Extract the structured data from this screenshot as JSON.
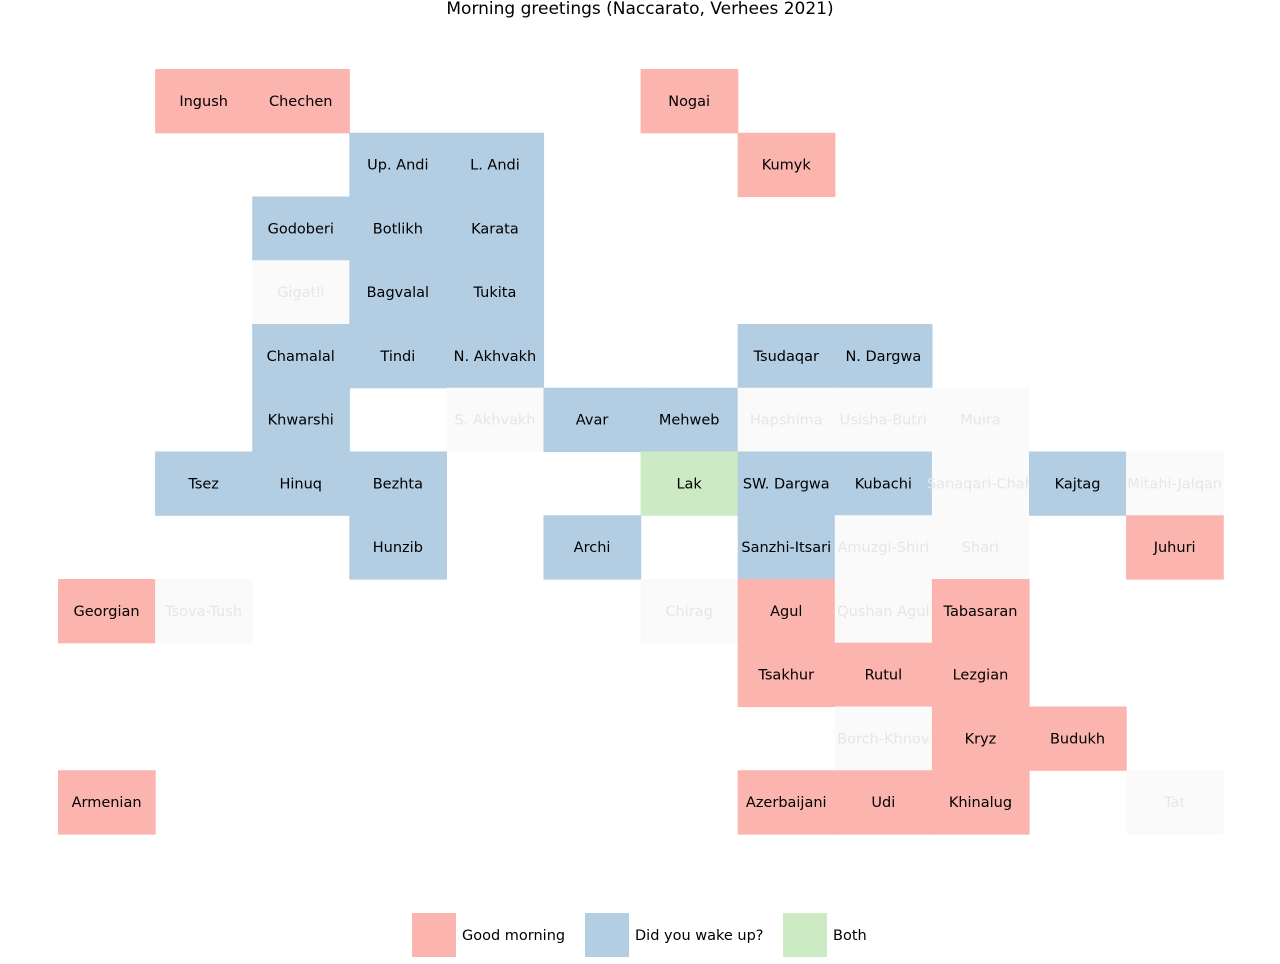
{
  "chart_data": {
    "type": "heatmap",
    "title": "Morning greetings (Naccarato, Verhees 2021)",
    "colors": {
      "good_morning": "#fbb4ae",
      "did_you_wake_up": "#b3cde3",
      "both": "#ccebc5",
      "no_data": "#fafafa",
      "label_dark": "#000000",
      "label_faded": "#e6e6e6"
    },
    "legend": {
      "placement": "bottom-center",
      "entries": [
        {
          "key": "good_morning",
          "label": "Good morning"
        },
        {
          "key": "did_you_wake_up",
          "label": "Did you wake up?"
        },
        {
          "key": "both",
          "label": "Both"
        }
      ]
    },
    "grid": {
      "columns": 12,
      "rows": 12
    },
    "cells": [
      {
        "name": "Ingush",
        "col": 1,
        "row": 0,
        "category": "good_morning"
      },
      {
        "name": "Chechen",
        "col": 2,
        "row": 0,
        "category": "good_morning"
      },
      {
        "name": "Nogai",
        "col": 6,
        "row": 0,
        "category": "good_morning"
      },
      {
        "name": "Up. Andi",
        "col": 3,
        "row": 1,
        "category": "did_you_wake_up"
      },
      {
        "name": "L. Andi",
        "col": 4,
        "row": 1,
        "category": "did_you_wake_up"
      },
      {
        "name": "Kumyk",
        "col": 7,
        "row": 1,
        "category": "good_morning"
      },
      {
        "name": "Godoberi",
        "col": 2,
        "row": 2,
        "category": "did_you_wake_up"
      },
      {
        "name": "Botlikh",
        "col": 3,
        "row": 2,
        "category": "did_you_wake_up"
      },
      {
        "name": "Karata",
        "col": 4,
        "row": 2,
        "category": "did_you_wake_up"
      },
      {
        "name": "Gigatli",
        "col": 2,
        "row": 3,
        "category": "no_data"
      },
      {
        "name": "Bagvalal",
        "col": 3,
        "row": 3,
        "category": "did_you_wake_up"
      },
      {
        "name": "Tukita",
        "col": 4,
        "row": 3,
        "category": "did_you_wake_up"
      },
      {
        "name": "Chamalal",
        "col": 2,
        "row": 4,
        "category": "did_you_wake_up"
      },
      {
        "name": "Tindi",
        "col": 3,
        "row": 4,
        "category": "did_you_wake_up"
      },
      {
        "name": "N. Akhvakh",
        "col": 4,
        "row": 4,
        "category": "did_you_wake_up"
      },
      {
        "name": "Tsudaqar",
        "col": 7,
        "row": 4,
        "category": "did_you_wake_up"
      },
      {
        "name": "N. Dargwa",
        "col": 8,
        "row": 4,
        "category": "did_you_wake_up"
      },
      {
        "name": "Khwarshi",
        "col": 2,
        "row": 5,
        "category": "did_you_wake_up"
      },
      {
        "name": "S. Akhvakh",
        "col": 4,
        "row": 5,
        "category": "no_data"
      },
      {
        "name": "Avar",
        "col": 5,
        "row": 5,
        "category": "did_you_wake_up"
      },
      {
        "name": "Mehweb",
        "col": 6,
        "row": 5,
        "category": "did_you_wake_up"
      },
      {
        "name": "Hapshima",
        "col": 7,
        "row": 5,
        "category": "no_data"
      },
      {
        "name": "Usisha-Butri",
        "col": 8,
        "row": 5,
        "category": "no_data"
      },
      {
        "name": "Muira",
        "col": 9,
        "row": 5,
        "category": "no_data"
      },
      {
        "name": "Tsez",
        "col": 1,
        "row": 6,
        "category": "did_you_wake_up"
      },
      {
        "name": "Hinuq",
        "col": 2,
        "row": 6,
        "category": "did_you_wake_up"
      },
      {
        "name": "Bezhta",
        "col": 3,
        "row": 6,
        "category": "did_you_wake_up"
      },
      {
        "name": "Lak",
        "col": 6,
        "row": 6,
        "category": "both"
      },
      {
        "name": "SW. Dargwa",
        "col": 7,
        "row": 6,
        "category": "did_you_wake_up"
      },
      {
        "name": "Kubachi",
        "col": 8,
        "row": 6,
        "category": "did_you_wake_up"
      },
      {
        "name": "Sanaqari-Chah",
        "col": 9,
        "row": 6,
        "category": "no_data"
      },
      {
        "name": "Kajtag",
        "col": 10,
        "row": 6,
        "category": "did_you_wake_up"
      },
      {
        "name": "Mitahi-Jalqan",
        "col": 11,
        "row": 6,
        "category": "no_data"
      },
      {
        "name": "Hunzib",
        "col": 3,
        "row": 7,
        "category": "did_you_wake_up"
      },
      {
        "name": "Archi",
        "col": 5,
        "row": 7,
        "category": "did_you_wake_up"
      },
      {
        "name": "Sanzhi-Itsari",
        "col": 7,
        "row": 7,
        "category": "did_you_wake_up"
      },
      {
        "name": "Amuzgi-Shiri",
        "col": 8,
        "row": 7,
        "category": "no_data"
      },
      {
        "name": "Shari",
        "col": 9,
        "row": 7,
        "category": "no_data"
      },
      {
        "name": "Juhuri",
        "col": 11,
        "row": 7,
        "category": "good_morning"
      },
      {
        "name": "Georgian",
        "col": 0,
        "row": 8,
        "category": "good_morning"
      },
      {
        "name": "Tsova-Tush",
        "col": 1,
        "row": 8,
        "category": "no_data"
      },
      {
        "name": "Chirag",
        "col": 6,
        "row": 8,
        "category": "no_data"
      },
      {
        "name": "Agul",
        "col": 7,
        "row": 8,
        "category": "good_morning"
      },
      {
        "name": "Qushan Agul",
        "col": 8,
        "row": 8,
        "category": "no_data"
      },
      {
        "name": "Tabasaran",
        "col": 9,
        "row": 8,
        "category": "good_morning"
      },
      {
        "name": "Tsakhur",
        "col": 7,
        "row": 9,
        "category": "good_morning"
      },
      {
        "name": "Rutul",
        "col": 8,
        "row": 9,
        "category": "good_morning"
      },
      {
        "name": "Lezgian",
        "col": 9,
        "row": 9,
        "category": "good_morning"
      },
      {
        "name": "Borch-Khnov",
        "col": 8,
        "row": 10,
        "category": "no_data"
      },
      {
        "name": "Kryz",
        "col": 9,
        "row": 10,
        "category": "good_morning"
      },
      {
        "name": "Budukh",
        "col": 10,
        "row": 10,
        "category": "good_morning"
      },
      {
        "name": "Armenian",
        "col": 0,
        "row": 11,
        "category": "good_morning"
      },
      {
        "name": "Azerbaijani",
        "col": 7,
        "row": 11,
        "category": "good_morning"
      },
      {
        "name": "Udi",
        "col": 8,
        "row": 11,
        "category": "good_morning"
      },
      {
        "name": "Khinalug",
        "col": 9,
        "row": 11,
        "category": "good_morning"
      },
      {
        "name": "Tat",
        "col": 11,
        "row": 11,
        "category": "no_data"
      }
    ]
  }
}
